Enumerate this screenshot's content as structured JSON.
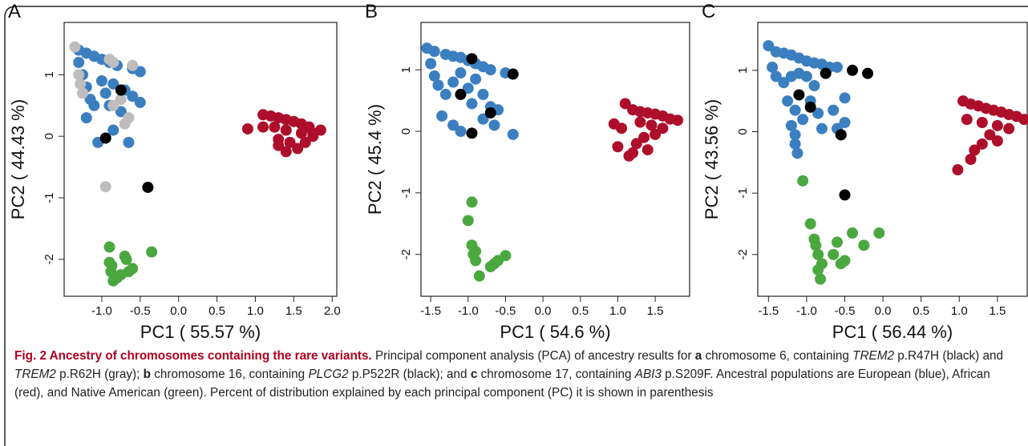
{
  "chart_data": [
    {
      "type": "scatter",
      "label": "A",
      "xlabel": "PC1 ( 55.57 %)",
      "ylabel": "PC2 ( 44.43 %)",
      "xlim": [
        -1.49,
        2.06
      ],
      "ylim": [
        -2.6,
        1.85
      ],
      "xticks": [
        {
          "value": -1,
          "label": "-1.0"
        },
        -0.5,
        {
          "value": 0,
          "label": "0.0"
        },
        0.5,
        {
          "value": 1,
          "label": "1.0"
        },
        1.5,
        {
          "value": 2,
          "label": "2.0"
        }
      ],
      "yticks": [
        -2,
        -1,
        0,
        1
      ],
      "series": [
        {
          "color": "#3b7fc0",
          "x": [
            -1.3,
            -1.2,
            -1.1,
            -1.0,
            -0.9,
            -0.8,
            -0.6,
            -0.5,
            -1.3,
            -1.25,
            -1.2,
            -1.15,
            -1.1,
            -1.0,
            -0.95,
            -0.9,
            -0.85,
            -0.7,
            -0.6,
            -0.5,
            -1.05,
            -0.85,
            -0.65,
            -1.2,
            -0.75
          ],
          "y": [
            1.4,
            1.35,
            1.3,
            1.25,
            1.2,
            1.15,
            1.1,
            1.05,
            1.2,
            1.0,
            0.8,
            0.6,
            0.5,
            0.9,
            0.7,
            0.5,
            0.85,
            0.75,
            0.65,
            0.55,
            -0.1,
            0.1,
            -0.1,
            0.3,
            0.4
          ]
        },
        {
          "color": "#ad0f2b",
          "x": [
            0.9,
            1.1,
            1.2,
            1.3,
            1.4,
            1.5,
            1.6,
            1.7,
            1.85,
            1.1,
            1.25,
            1.4,
            1.6,
            1.75,
            1.3,
            1.45,
            1.55,
            1.4,
            1.3,
            1.75,
            1.65
          ],
          "y": [
            0.12,
            0.35,
            0.33,
            0.3,
            0.27,
            0.24,
            0.2,
            0.15,
            0.1,
            0.15,
            0.15,
            0.1,
            0.05,
            0.05,
            -0.05,
            -0.1,
            -0.2,
            -0.25,
            -0.15,
            0.0,
            -0.1
          ]
        },
        {
          "color": "#4aa83f",
          "x": [
            -0.9,
            -0.9,
            -0.88,
            -0.85,
            -0.8,
            -0.75,
            -0.7,
            -0.68,
            -0.65,
            -0.6,
            -0.35,
            -0.87
          ],
          "y": [
            -1.8,
            -2.05,
            -2.2,
            -2.35,
            -2.3,
            -2.25,
            -1.95,
            -2.0,
            -2.2,
            -2.15,
            -1.88,
            -2.1
          ]
        },
        {
          "color": "#bdbdbd",
          "x": [
            -1.35,
            -1.3,
            -1.28,
            -1.25,
            -0.9,
            -0.85,
            -0.6,
            -0.75,
            -0.85,
            -0.65,
            -0.7,
            -0.95
          ],
          "y": [
            1.45,
            1.0,
            0.85,
            0.7,
            1.25,
            1.2,
            1.15,
            0.6,
            0.5,
            0.3,
            0.2,
            -0.82
          ]
        },
        {
          "color": "#000000",
          "x": [
            -0.75,
            -0.95,
            -0.4
          ],
          "y": [
            0.75,
            -0.03,
            -0.83
          ]
        }
      ]
    },
    {
      "type": "scatter",
      "label": "B",
      "xlabel": "PC1 ( 54.6 %)",
      "ylabel": "PC2 ( 45.4 %)",
      "xlim": [
        -1.63,
        1.96
      ],
      "ylim": [
        -2.68,
        1.77
      ],
      "xticks": [
        -1.5,
        {
          "value": -1,
          "label": "-1.0"
        },
        -0.5,
        {
          "value": 0,
          "label": "0.0"
        },
        0.5,
        {
          "value": 1,
          "label": "1.0"
        },
        1.5
      ],
      "yticks": [
        -2,
        -1,
        0,
        1
      ],
      "series": [
        {
          "color": "#3b7fc0",
          "x": [
            -1.55,
            -1.45,
            -1.3,
            -1.2,
            -1.1,
            -1.0,
            -0.9,
            -0.8,
            -0.7,
            -0.5,
            -1.5,
            -1.45,
            -1.4,
            -1.3,
            -1.2,
            -1.1,
            -1.0,
            -0.9,
            -0.8,
            -0.7,
            -0.6,
            -1.35,
            -1.2,
            -0.95,
            -0.8,
            -0.65,
            -0.4,
            -1.1
          ],
          "y": [
            1.35,
            1.3,
            1.25,
            1.22,
            1.2,
            1.15,
            1.1,
            1.05,
            1.0,
            0.95,
            1.1,
            0.9,
            0.75,
            0.6,
            0.8,
            0.95,
            0.7,
            0.85,
            0.6,
            0.4,
            0.35,
            0.25,
            0.1,
            0.45,
            0.2,
            0.1,
            -0.05,
            0.0
          ]
        },
        {
          "color": "#ad0f2b",
          "x": [
            0.95,
            1.05,
            1.0,
            1.1,
            1.2,
            1.3,
            1.4,
            1.5,
            1.6,
            1.7,
            1.8,
            1.3,
            1.45,
            1.6,
            1.35,
            1.25,
            1.2,
            1.15,
            1.5,
            1.4
          ],
          "y": [
            0.12,
            0.05,
            -0.25,
            0.45,
            0.35,
            0.32,
            0.3,
            0.28,
            0.25,
            0.2,
            0.18,
            0.15,
            0.1,
            0.05,
            -0.1,
            -0.2,
            -0.35,
            -0.4,
            -0.05,
            -0.3
          ]
        },
        {
          "color": "#4aa83f",
          "x": [
            -0.95,
            -1.0,
            -0.95,
            -0.93,
            -0.9,
            -0.85,
            -0.7,
            -0.65,
            -0.6,
            -0.5,
            -0.9
          ],
          "y": [
            -1.15,
            -1.45,
            -1.85,
            -2.0,
            -2.1,
            -2.35,
            -2.2,
            -2.15,
            -2.1,
            -2.02,
            -1.95
          ]
        },
        {
          "color": "#000000",
          "x": [
            -0.95,
            -0.4,
            -1.1,
            -0.7,
            -0.95
          ],
          "y": [
            1.18,
            0.93,
            0.6,
            0.3,
            -0.03
          ]
        }
      ]
    },
    {
      "type": "scatter",
      "label": "C",
      "xlabel": "PC1 ( 56.44 %)",
      "ylabel": "PC2 ( 43.56 %)",
      "xlim": [
        -1.64,
        1.89
      ],
      "ylim": [
        -2.68,
        1.78
      ],
      "xticks": [
        -1.5,
        {
          "value": -1,
          "label": "-1.0"
        },
        -0.5,
        {
          "value": 0,
          "label": "0.0"
        },
        0.5,
        {
          "value": 1,
          "label": "1.0"
        },
        1.5
      ],
      "yticks": [
        -2,
        -1,
        0,
        1
      ],
      "series": [
        {
          "color": "#3b7fc0",
          "x": [
            -1.5,
            -1.4,
            -1.3,
            -1.2,
            -1.1,
            -1.0,
            -0.9,
            -0.8,
            -0.7,
            -0.6,
            -1.45,
            -1.4,
            -1.3,
            -1.2,
            -1.1,
            -1.0,
            -0.9,
            -1.25,
            -1.15,
            -1.05,
            -1.2,
            -1.15,
            -1.15,
            -1.12,
            -0.95,
            -0.85,
            -0.8,
            -0.65,
            -0.6,
            -0.5,
            -0.5,
            -0.55
          ],
          "y": [
            1.4,
            1.3,
            1.28,
            1.25,
            1.2,
            1.15,
            1.12,
            1.1,
            1.05,
            1.05,
            1.05,
            0.9,
            0.8,
            0.9,
            0.95,
            0.9,
            0.75,
            0.5,
            0.35,
            0.2,
            0.1,
            -0.05,
            -0.2,
            -0.35,
            0.5,
            0.3,
            0.05,
            0.35,
            0.05,
            0.55,
            0.15,
            -0.05
          ]
        },
        {
          "color": "#ad0f2b",
          "x": [
            0.98,
            1.05,
            1.15,
            1.25,
            1.35,
            1.45,
            1.55,
            1.65,
            1.75,
            1.85,
            1.1,
            1.3,
            1.5,
            1.65,
            1.4,
            1.3,
            1.2,
            1.15,
            1.5
          ],
          "y": [
            -0.62,
            0.5,
            0.45,
            0.42,
            0.38,
            0.35,
            0.32,
            0.28,
            0.25,
            0.2,
            0.2,
            0.15,
            0.1,
            0.05,
            -0.05,
            -0.2,
            -0.3,
            -0.45,
            -0.15
          ]
        },
        {
          "color": "#4aa83f",
          "x": [
            -1.05,
            -0.95,
            -0.9,
            -0.88,
            -0.85,
            -0.8,
            -0.85,
            -0.82,
            -0.65,
            -0.6,
            -0.55,
            -0.5,
            -0.4,
            -0.25,
            -0.05
          ],
          "y": [
            -0.8,
            -1.5,
            -1.75,
            -1.85,
            -2.0,
            -2.15,
            -2.25,
            -2.4,
            -2.0,
            -1.8,
            -2.15,
            -2.1,
            -1.65,
            -1.85,
            -1.65
          ]
        },
        {
          "color": "#000000",
          "x": [
            -0.75,
            -0.4,
            -0.2,
            -1.1,
            -0.95,
            -0.55,
            -0.5
          ],
          "y": [
            0.95,
            1.0,
            0.95,
            0.6,
            0.4,
            -0.05,
            -1.03
          ]
        }
      ]
    }
  ],
  "caption": [
    {
      "style": "bold",
      "text": "Fig. 2 Ancestry of chromosomes containing the rare variants."
    },
    {
      "style": "normal",
      "text": " Principal component analysis (PCA) of ancestry results for "
    },
    {
      "style": "b",
      "text": "a"
    },
    {
      "style": "normal",
      "text": " chromosome 6, containing "
    },
    {
      "style": "i",
      "text": "TREM2"
    },
    {
      "style": "normal",
      "text": " p.R47H (black) and "
    },
    {
      "style": "i",
      "text": "TREM2"
    },
    {
      "style": "normal",
      "text": " p.R62H (gray); "
    },
    {
      "style": "b",
      "text": "b"
    },
    {
      "style": "normal",
      "text": " chromosome 16, containing "
    },
    {
      "style": "i",
      "text": "PLCG2"
    },
    {
      "style": "normal",
      "text": " p.P522R (black); and "
    },
    {
      "style": "b",
      "text": "c"
    },
    {
      "style": "normal",
      "text": " chromosome 17, containing "
    },
    {
      "style": "i",
      "text": "ABI3"
    },
    {
      "style": "normal",
      "text": " p.S209F. Ancestral populations are European (blue), African (red), and Native American (green). Percent of distribution explained by each principal component (PC) it is shown in parenthesis"
    }
  ]
}
